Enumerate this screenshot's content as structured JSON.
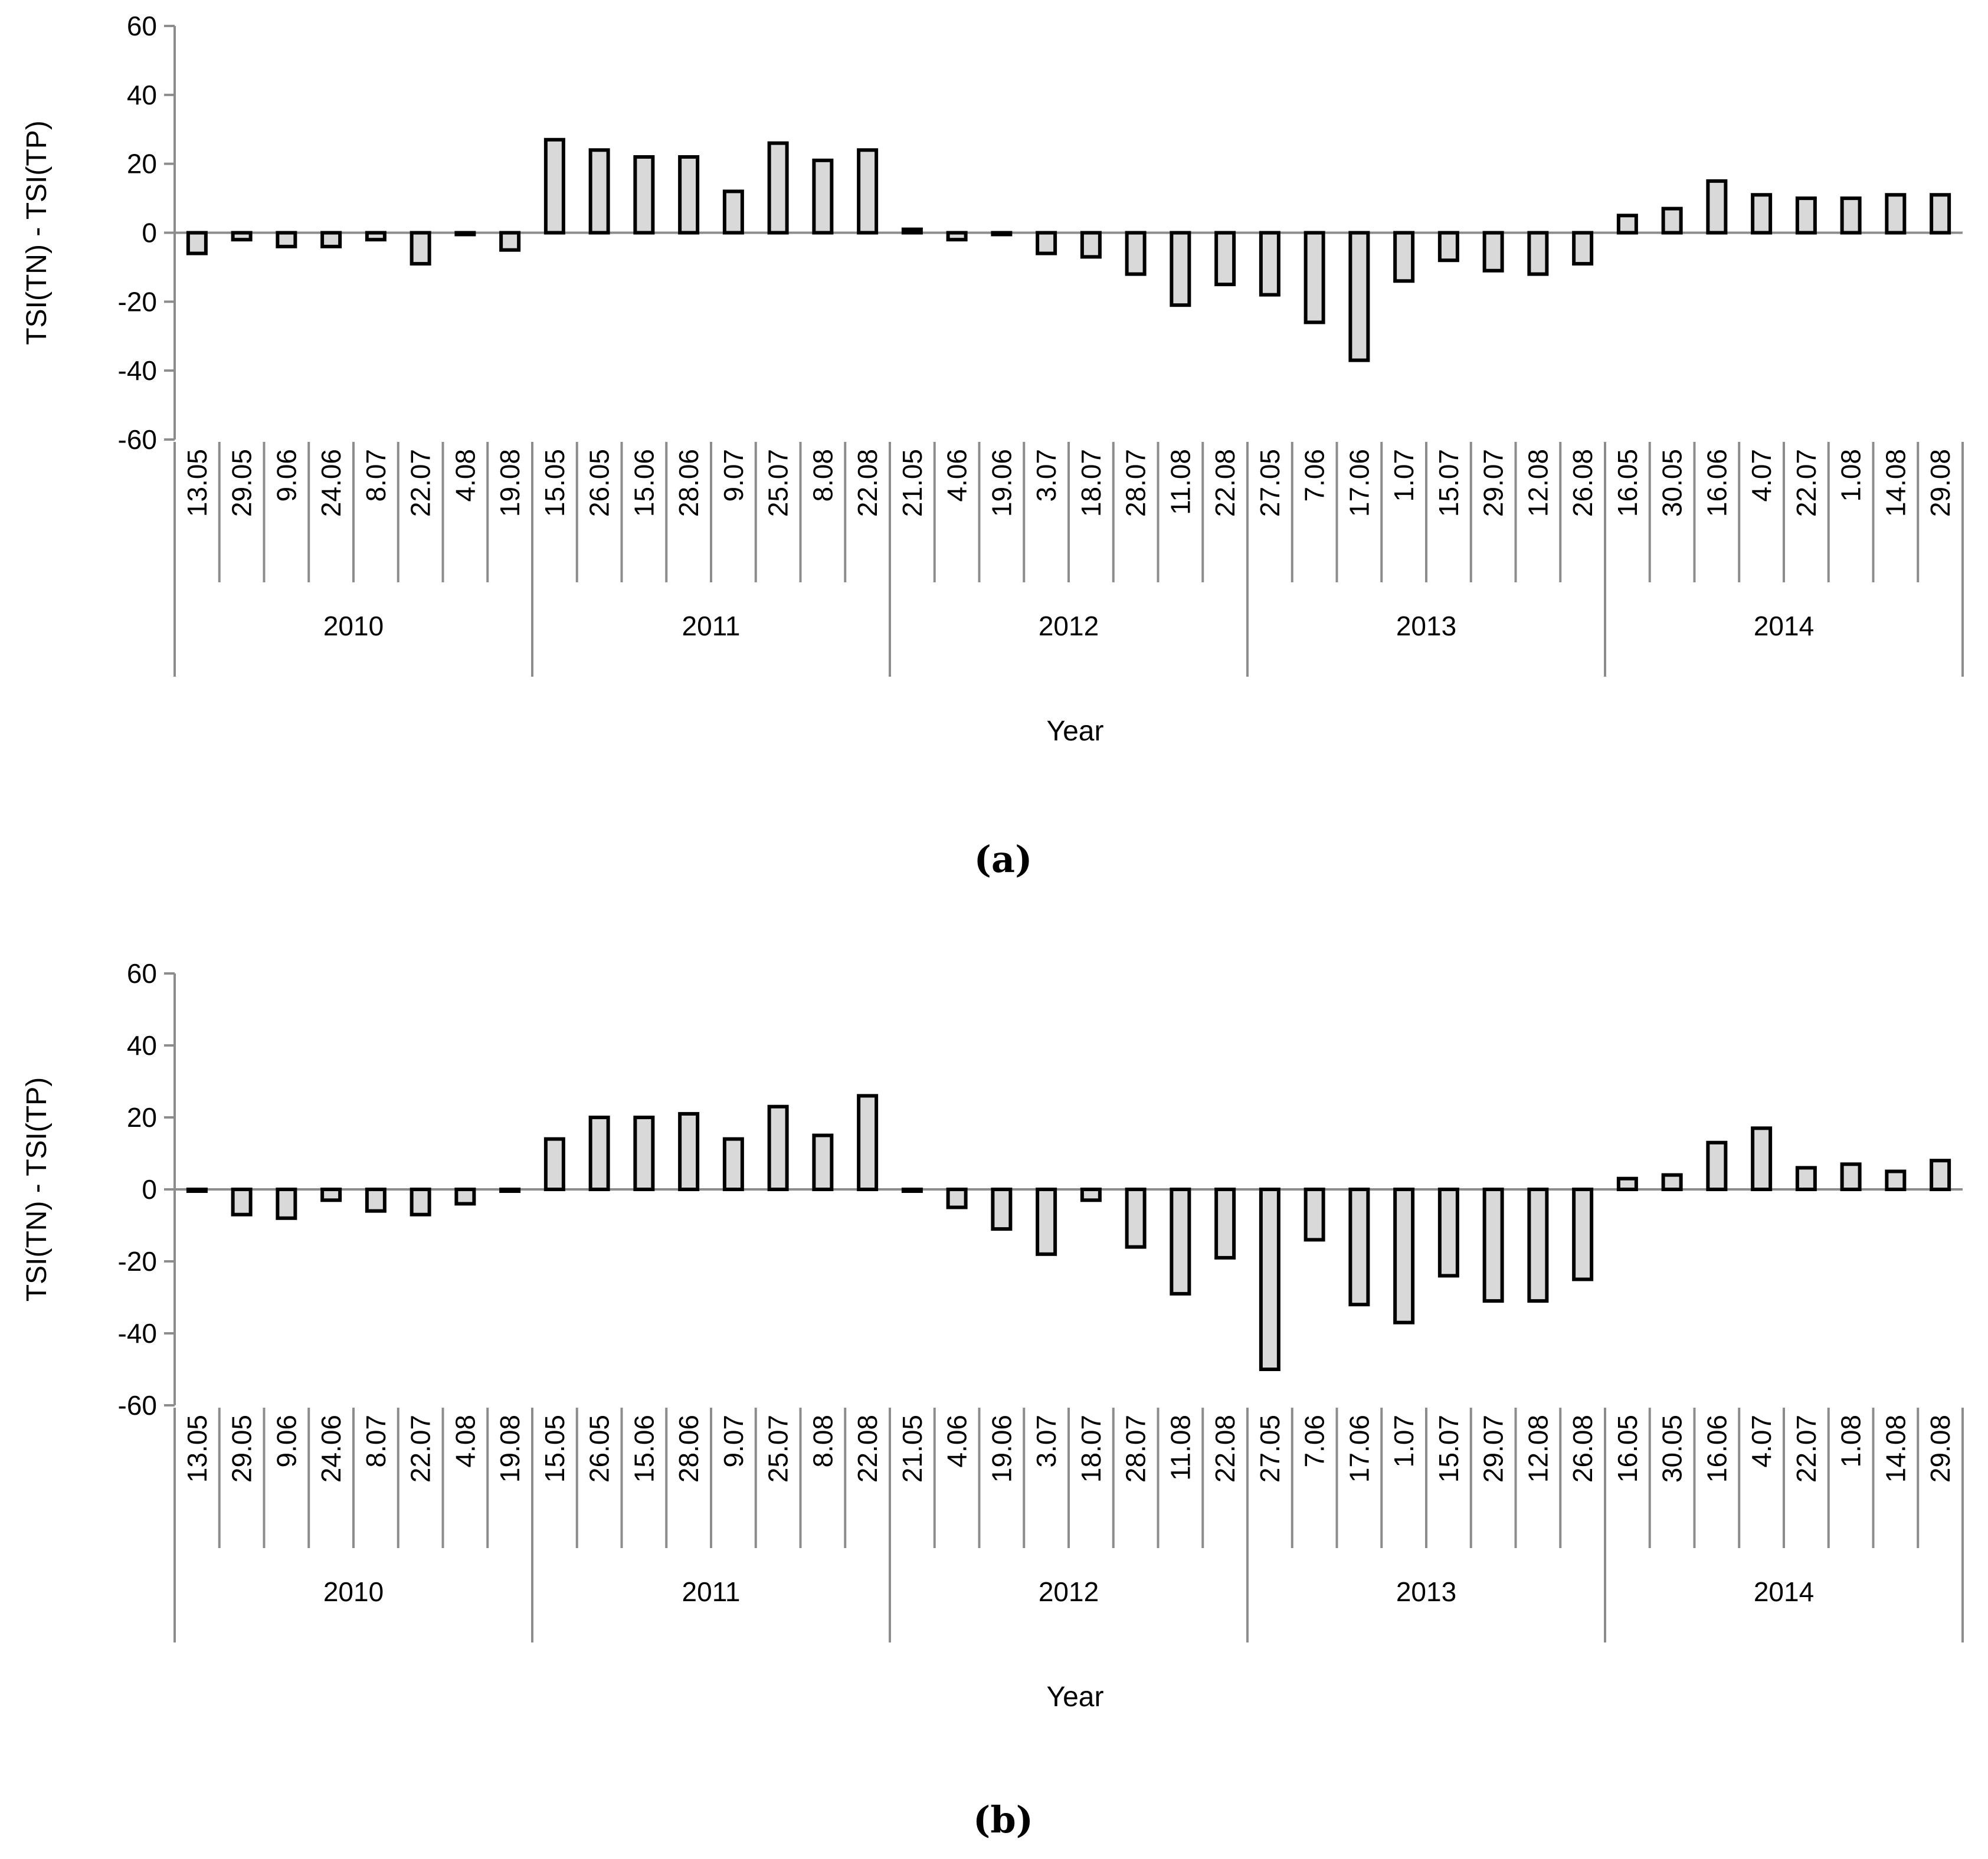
{
  "colors": {
    "bar_fill": "#d9d9d9",
    "bar_stroke": "#000000",
    "axis": "#8c8c8c"
  },
  "chart_data": [
    {
      "type": "bar",
      "title": "",
      "panel_label": "(a)",
      "xlabel": "Year",
      "ylabel": "TSI(TN) - TSI(TP)",
      "ylim": [
        -60,
        60
      ],
      "yticks": [
        "60",
        "40",
        "20",
        "0",
        "-20",
        "-40",
        "-60"
      ],
      "grid": false,
      "legend": "none",
      "groups": [
        {
          "year": "2010",
          "dates": [
            "13.05",
            "29.05",
            "9.06",
            "24.06",
            "8.07",
            "22.07",
            "4.08",
            "19.08"
          ],
          "values": [
            -6,
            -2,
            -4,
            -4,
            -2,
            -9,
            0,
            -5
          ]
        },
        {
          "year": "2011",
          "dates": [
            "15.05",
            "26.05",
            "15.06",
            "28.06",
            "9.07",
            "25.07",
            "8.08",
            "22.08"
          ],
          "values": [
            27,
            24,
            22,
            22,
            12,
            26,
            21,
            24
          ]
        },
        {
          "year": "2012",
          "dates": [
            "21.05",
            "4.06",
            "19.06",
            "3.07",
            "18.07",
            "28.07",
            "11.08",
            "22.08"
          ],
          "values": [
            1,
            -2,
            0,
            -6,
            -7,
            -12,
            -21,
            -15
          ]
        },
        {
          "year": "2013",
          "dates": [
            "27.05",
            "7.06",
            "17.06",
            "1.07",
            "15.07",
            "29.07",
            "12.08",
            "26.08"
          ],
          "values": [
            -18,
            -26,
            -37,
            -14,
            -8,
            -11,
            -12,
            -9
          ]
        },
        {
          "year": "2014",
          "dates": [
            "16.05",
            "30.05",
            "16.06",
            "4.07",
            "22.07",
            "1.08",
            "14.08",
            "29.08"
          ],
          "values": [
            5,
            7,
            15,
            11,
            10,
            10,
            11,
            11
          ]
        }
      ]
    },
    {
      "type": "bar",
      "title": "",
      "panel_label": "(b)",
      "xlabel": "Year",
      "ylabel": "TSI(TN) - TSI(TP)",
      "ylim": [
        -60,
        60
      ],
      "yticks": [
        "60",
        "40",
        "20",
        "0",
        "-20",
        "-40",
        "-60"
      ],
      "grid": false,
      "legend": "none",
      "groups": [
        {
          "year": "2010",
          "dates": [
            "13.05",
            "29.05",
            "9.06",
            "24.06",
            "8.07",
            "22.07",
            "4.08",
            "19.08"
          ],
          "values": [
            0,
            -7,
            -8,
            -3,
            -6,
            -7,
            -4,
            0
          ]
        },
        {
          "year": "2011",
          "dates": [
            "15.05",
            "26.05",
            "15.06",
            "28.06",
            "9.07",
            "25.07",
            "8.08",
            "22.08"
          ],
          "values": [
            14,
            20,
            20,
            21,
            14,
            23,
            15,
            26
          ]
        },
        {
          "year": "2012",
          "dates": [
            "21.05",
            "4.06",
            "19.06",
            "3.07",
            "18.07",
            "28.07",
            "11.08",
            "22.08"
          ],
          "values": [
            0,
            -5,
            -11,
            -18,
            -3,
            -16,
            -29,
            -19
          ]
        },
        {
          "year": "2013",
          "dates": [
            "27.05",
            "7.06",
            "17.06",
            "1.07",
            "15.07",
            "29.07",
            "12.08",
            "26.08"
          ],
          "values": [
            -50,
            -14,
            -32,
            -37,
            -24,
            -31,
            -31,
            -25
          ]
        },
        {
          "year": "2014",
          "dates": [
            "16.05",
            "30.05",
            "16.06",
            "4.07",
            "22.07",
            "1.08",
            "14.08",
            "29.08"
          ],
          "values": [
            3,
            4,
            13,
            17,
            6,
            7,
            5,
            8
          ]
        }
      ]
    }
  ]
}
